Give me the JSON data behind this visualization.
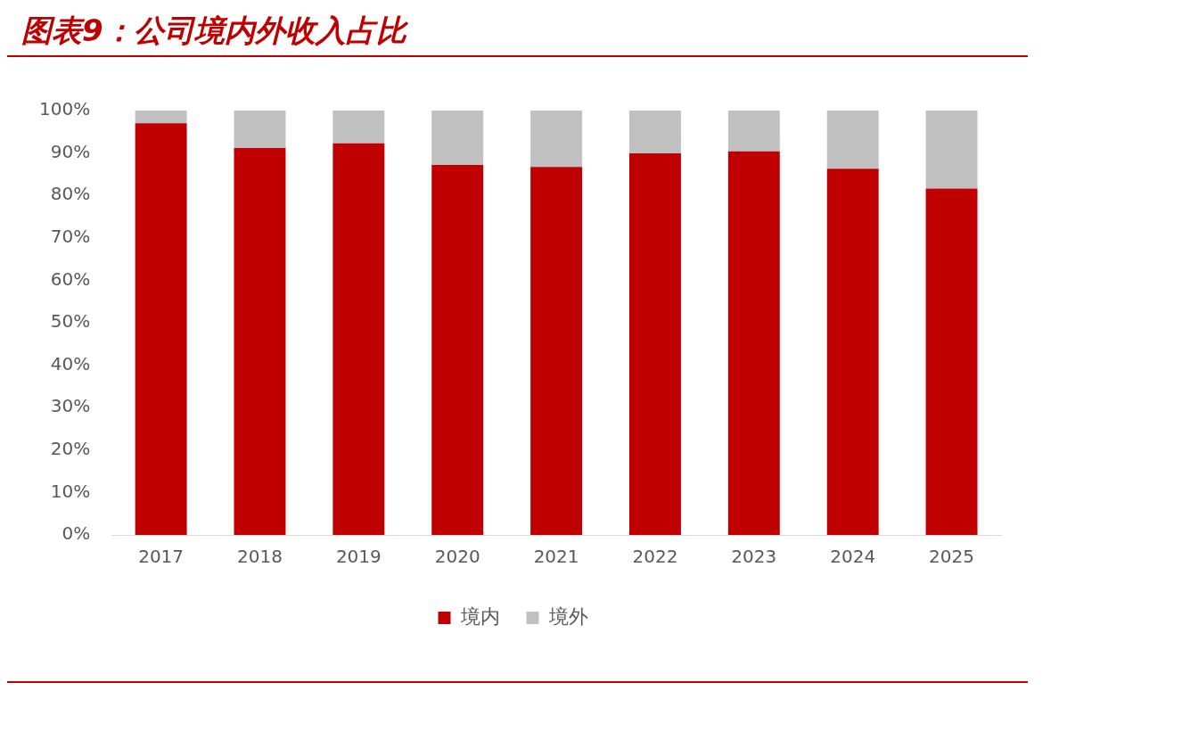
{
  "chart_data": {
    "type": "bar",
    "title": "图表9：公司境内外收入占比",
    "categories": [
      "2017",
      "2018",
      "2019",
      "2020",
      "2021",
      "2022",
      "2023",
      "2024",
      "2025"
    ],
    "series": [
      {
        "name": "境内",
        "color": "#c00000",
        "values": [
          97.0,
          91.2,
          92.3,
          87.2,
          86.7,
          89.9,
          90.4,
          86.3,
          81.6
        ]
      },
      {
        "name": "境外",
        "color": "#c0c0c0",
        "values": [
          3.0,
          8.8,
          7.7,
          12.8,
          13.3,
          10.1,
          9.6,
          13.7,
          18.4
        ]
      }
    ],
    "stacked": true,
    "ylim": [
      0,
      100
    ],
    "yticks": [
      {
        "value": 0,
        "label": "0%"
      },
      {
        "value": 10,
        "label": "10%"
      },
      {
        "value": 20,
        "label": "20%"
      },
      {
        "value": 30,
        "label": "30%"
      },
      {
        "value": 40,
        "label": "40%"
      },
      {
        "value": 50,
        "label": "50%"
      },
      {
        "value": 60,
        "label": "60%"
      },
      {
        "value": 70,
        "label": "70%"
      },
      {
        "value": 80,
        "label": "80%"
      },
      {
        "value": 90,
        "label": "90%"
      },
      {
        "value": 100,
        "label": "100%"
      }
    ],
    "grid": false,
    "legend": "bottom"
  }
}
